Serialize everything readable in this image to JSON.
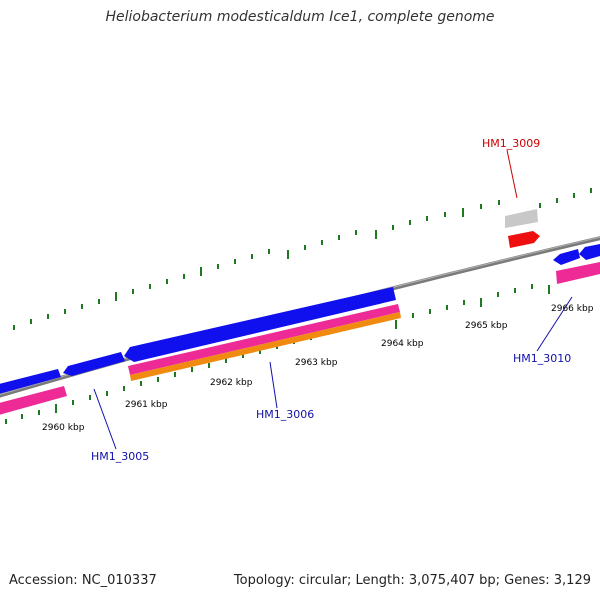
{
  "title": "Heliobacterium modesticaldum Ice1, complete genome",
  "footer": {
    "accession": "Accession: NC_010337",
    "summary": "Topology: circular; Length: 3,075,407 bp; Genes: 3,129"
  },
  "scale_labels": [
    "2960 kbp",
    "2961 kbp",
    "2962 kbp",
    "2963 kbp",
    "2964 kbp",
    "2965 kbp",
    "2966 kbp"
  ],
  "gene_labels": {
    "hm1_3009": "HM1_3009",
    "hm1_3005": "HM1_3005",
    "hm1_3006": "HM1_3006",
    "hm1_3010": "HM1_3010"
  },
  "colors": {
    "axis": "#7a7a7a",
    "tick": "#1f7a1f",
    "gene_blue": "#1010ee",
    "gene_pink": "#ee2a96",
    "gene_orange": "#f08a10",
    "gene_red": "#ee1010",
    "gene_gray": "#c8c8c8",
    "label_red": "#cc0000",
    "label_blue": "#1010aa"
  }
}
